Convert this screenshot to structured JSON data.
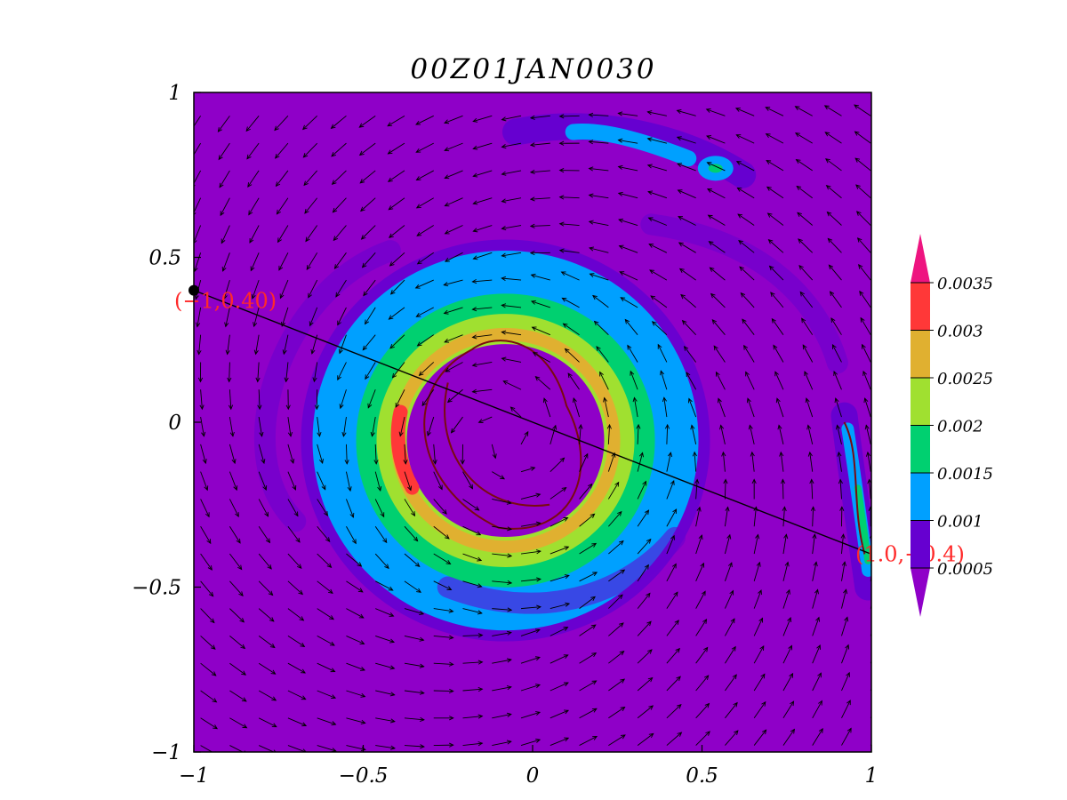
{
  "chart_data": {
    "type": "heatmap",
    "title": "00Z01JAN0030",
    "xlim": [
      -1,
      1
    ],
    "ylim": [
      -1,
      1
    ],
    "x_ticks": [
      -1,
      -0.5,
      0,
      0.5,
      1
    ],
    "x_tick_labels": [
      "−1",
      "−0.5",
      "0",
      "0.5",
      "1"
    ],
    "y_ticks": [
      1,
      0.5,
      0,
      -0.5,
      -1
    ],
    "y_tick_labels": [
      "1",
      "0.5",
      "0",
      "−0.5",
      "−1"
    ],
    "grid": false,
    "vortex_center": [
      -0.08,
      -0.05
    ],
    "cross_section": {
      "start": [
        -1,
        0.4
      ],
      "end": [
        1,
        -0.4
      ],
      "start_label": "(−1,0.40)",
      "end_label": "(1.0,−0.4)"
    },
    "colorbar": {
      "position": "right",
      "levels": [
        0.0005,
        0.001,
        0.0015,
        0.002,
        0.0025,
        0.003,
        0.0035
      ],
      "tick_labels": [
        "0.0005",
        "0.001",
        "0.0015",
        "0.002",
        "0.0025",
        "0.003",
        "0.0035"
      ],
      "colors": [
        "#8f00c8",
        "#6600d0",
        "#00a0ff",
        "#00d070",
        "#a0e030",
        "#e0b030",
        "#ff3838",
        "#ee1480"
      ],
      "extend": "both"
    }
  }
}
